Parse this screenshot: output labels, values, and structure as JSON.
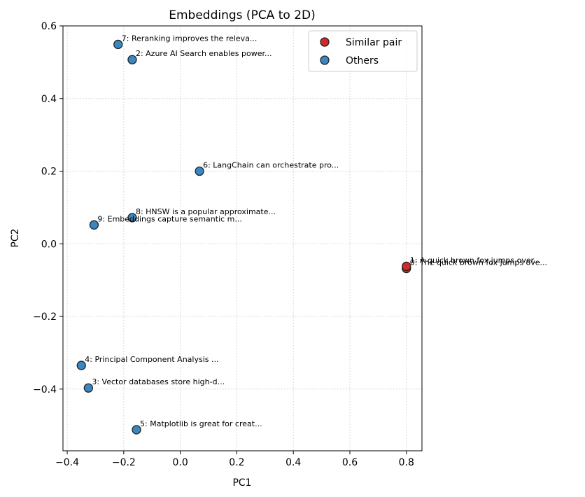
{
  "chart_data": {
    "type": "scatter",
    "title": "Embeddings (PCA to 2D)",
    "xlabel": "PC1",
    "ylabel": "PC2",
    "xlim": [
      -0.415,
      0.855
    ],
    "ylim": [
      -0.57,
      0.6
    ],
    "xticks": [
      -0.4,
      -0.2,
      0.0,
      0.2,
      0.4,
      0.6,
      0.8
    ],
    "xtick_labels": [
      "−0.4",
      "−0.2",
      "0.0",
      "0.2",
      "0.4",
      "0.6",
      "0.8"
    ],
    "yticks": [
      -0.4,
      -0.2,
      0.0,
      0.2,
      0.4,
      0.6
    ],
    "ytick_labels": [
      "−0.4",
      "−0.2",
      "0.0",
      "0.2",
      "0.4",
      "0.6"
    ],
    "grid": true,
    "legend_position": "top-right",
    "series": [
      {
        "name": "Similar pair",
        "color": "#d62728",
        "points": [
          {
            "x": 0.8,
            "y": -0.068,
            "label": "0: The quick brown fox jumps ove..."
          },
          {
            "x": 0.8,
            "y": -0.062,
            "label": "1: A quick brown fox jumps over..."
          }
        ]
      },
      {
        "name": "Others",
        "color": "#3a87c2",
        "points": [
          {
            "x": -0.17,
            "y": 0.507,
            "label": "2: Azure AI Search enables power..."
          },
          {
            "x": -0.325,
            "y": -0.397,
            "label": "3: Vector databases store high-d..."
          },
          {
            "x": -0.35,
            "y": -0.335,
            "label": "4: Principal Component Analysis ..."
          },
          {
            "x": -0.155,
            "y": -0.512,
            "label": "5: Matplotlib is great for creat..."
          },
          {
            "x": 0.068,
            "y": 0.2,
            "label": "6: LangChain can orchestrate pro..."
          },
          {
            "x": -0.22,
            "y": 0.549,
            "label": "7: Reranking improves the releva..."
          },
          {
            "x": -0.17,
            "y": 0.072,
            "label": "8: HNSW is a popular approximate..."
          },
          {
            "x": -0.305,
            "y": 0.052,
            "label": "9: Embeddings capture semantic m..."
          }
        ]
      }
    ]
  }
}
